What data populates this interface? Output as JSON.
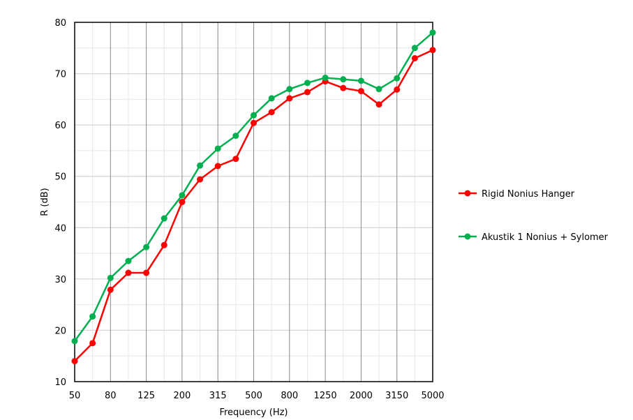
{
  "chart_data": {
    "type": "line",
    "xlabel": "Frequency (Hz)",
    "ylabel": "R (dB)",
    "ylim": [
      10,
      80
    ],
    "y_ticks": [
      "10",
      "20",
      "30",
      "40",
      "50",
      "60",
      "70",
      "80"
    ],
    "x": [
      "50",
      "63",
      "80",
      "100",
      "125",
      "160",
      "200",
      "250",
      "315",
      "400",
      "500",
      "630",
      "800",
      "1000",
      "1250",
      "1600",
      "2000",
      "2500",
      "3150",
      "4000",
      "5000"
    ],
    "x_tick_labels": [
      "50",
      "80",
      "125",
      "200",
      "315",
      "500",
      "800",
      "1250",
      "2000",
      "3150",
      "5000"
    ],
    "grid": true,
    "legend_position": "right",
    "series": [
      {
        "name": "Rigid Nonius Hanger",
        "color": "#ff0000",
        "values": [
          14.0,
          17.5,
          27.9,
          31.2,
          31.2,
          36.6,
          45.0,
          49.4,
          52.0,
          53.4,
          60.4,
          62.5,
          65.2,
          66.4,
          68.5,
          67.2,
          66.6,
          64.0,
          66.9,
          73.0,
          74.6
        ]
      },
      {
        "name": "Akustik 1 Nonius + Sylomer",
        "color": "#00b050",
        "values": [
          17.9,
          22.7,
          30.2,
          33.5,
          36.2,
          41.8,
          46.3,
          52.1,
          55.4,
          57.9,
          61.9,
          65.2,
          67.0,
          68.2,
          69.2,
          68.9,
          68.6,
          67.0,
          69.1,
          75.0,
          78.0
        ]
      }
    ]
  }
}
